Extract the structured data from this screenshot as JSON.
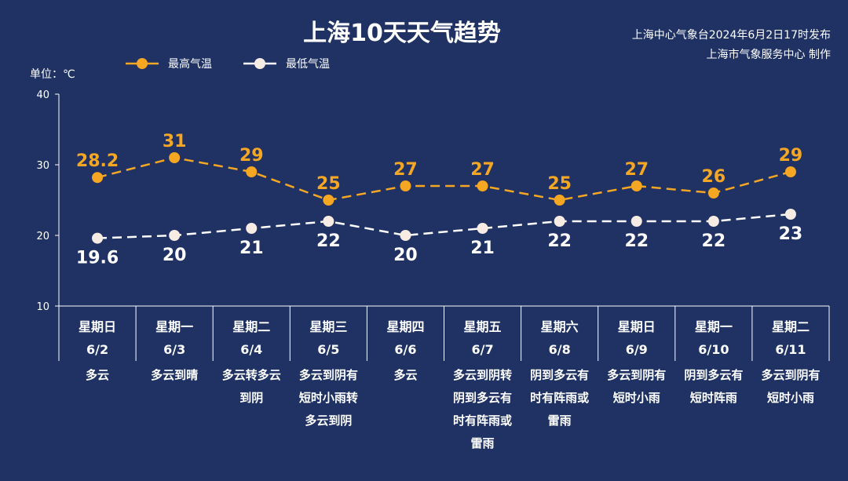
{
  "chart_data": {
    "type": "line",
    "title": "上海10天天气趋势",
    "source_lines": [
      "上海中心气象台2024年6月2日17时发布",
      "上海市气象服务中心 制作"
    ],
    "unit_label": "单位：℃",
    "ylim": [
      10,
      40
    ],
    "yticks": [
      "10",
      "20",
      "30",
      "40"
    ],
    "days": [
      {
        "day": "星期日",
        "date": "6/2",
        "weather": [
          "多云"
        ]
      },
      {
        "day": "星期一",
        "date": "6/3",
        "weather": [
          "多云到晴"
        ]
      },
      {
        "day": "星期二",
        "date": "6/4",
        "weather": [
          "多云转多云",
          "到阴"
        ]
      },
      {
        "day": "星期三",
        "date": "6/5",
        "weather": [
          "多云到阴有",
          "短时小雨转",
          "多云到阴"
        ]
      },
      {
        "day": "星期四",
        "date": "6/6",
        "weather": [
          "多云"
        ]
      },
      {
        "day": "星期五",
        "date": "6/7",
        "weather": [
          "多云到阴转",
          "阴到多云有",
          "时有阵雨或",
          "雷雨"
        ]
      },
      {
        "day": "星期六",
        "date": "6/8",
        "weather": [
          "阴到多云有",
          "时有阵雨或",
          "雷雨"
        ]
      },
      {
        "day": "星期日",
        "date": "6/9",
        "weather": [
          "多云到阴有",
          "短时小雨"
        ]
      },
      {
        "day": "星期一",
        "date": "6/10",
        "weather": [
          "阴到多云有",
          "短时阵雨"
        ]
      },
      {
        "day": "星期二",
        "date": "6/11",
        "weather": [
          "多云到阴有",
          "短时小雨"
        ]
      }
    ],
    "series": [
      {
        "name": "最高气温",
        "color": "#f5a623",
        "values": [
          28.2,
          31,
          29,
          25,
          27,
          27,
          25,
          27,
          26,
          29
        ],
        "labels": [
          "28.2",
          "31",
          "29",
          "25",
          "27",
          "27",
          "25",
          "27",
          "26",
          "29"
        ]
      },
      {
        "name": "最低气温",
        "color": "#ffffff",
        "values": [
          19.6,
          20,
          21,
          22,
          20,
          21,
          22,
          22,
          22,
          23
        ],
        "labels": [
          "19.6",
          "20",
          "21",
          "22",
          "20",
          "21",
          "22",
          "22",
          "22",
          "23"
        ]
      }
    ]
  }
}
